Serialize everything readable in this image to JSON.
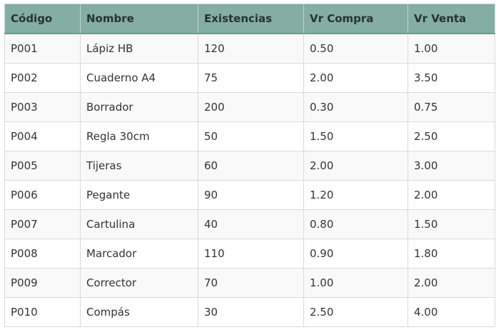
{
  "table": {
    "columns": [
      "Código",
      "Nombre",
      "Existencias",
      "Vr Compra",
      "Vr Venta"
    ],
    "rows": [
      [
        "P001",
        "Lápiz HB",
        "120",
        "0.50",
        "1.00"
      ],
      [
        "P002",
        "Cuaderno A4",
        "75",
        "2.00",
        "3.50"
      ],
      [
        "P003",
        "Borrador",
        "200",
        "0.30",
        "0.75"
      ],
      [
        "P004",
        "Regla 30cm",
        "50",
        "1.50",
        "2.50"
      ],
      [
        "P005",
        "Tijeras",
        "60",
        "2.00",
        "3.00"
      ],
      [
        "P006",
        "Pegante",
        "90",
        "1.20",
        "2.00"
      ],
      [
        "P007",
        "Cartulina",
        "40",
        "0.80",
        "1.50"
      ],
      [
        "P008",
        "Marcador",
        "110",
        "0.90",
        "1.80"
      ],
      [
        "P009",
        "Corrector",
        "70",
        "1.00",
        "2.00"
      ],
      [
        "P010",
        "Compás",
        "30",
        "2.50",
        "4.00"
      ]
    ]
  },
  "colors": {
    "header_background": "#84ada3",
    "header_text": "#243330",
    "border": "#d9d9d9",
    "stripe": "#f9f9f9"
  }
}
